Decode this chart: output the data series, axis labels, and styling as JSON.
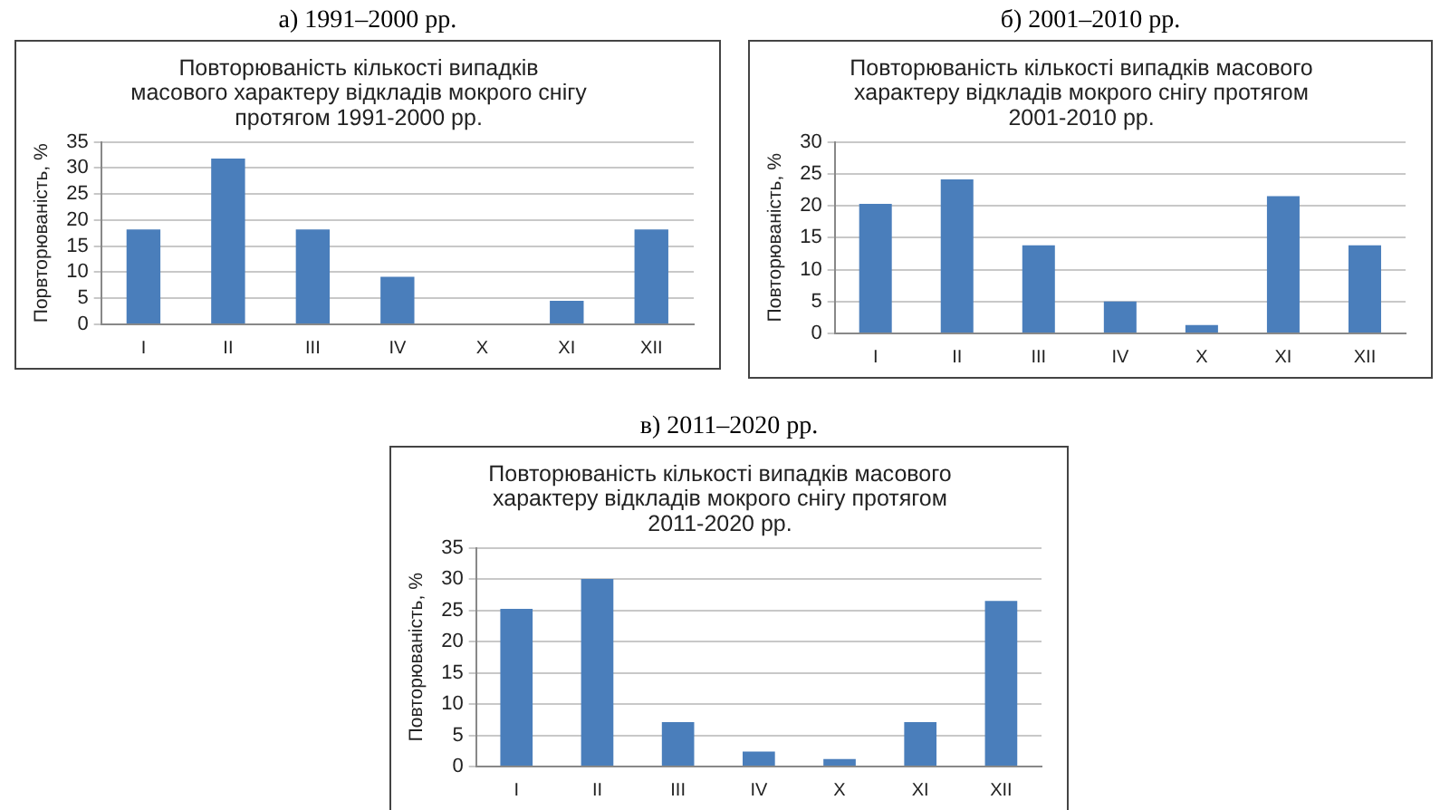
{
  "chart_data": [
    {
      "type": "bar",
      "annotations": [
        "а) 1991–2000 рр."
      ],
      "title": "Повторюваність кількості випадків\nмасового характеру відкладів мокрого снігу\nпротягом 1991-2000 рр.",
      "ylabel": "Порвторюваність, %",
      "categories": [
        "I",
        "II",
        "III",
        "IV",
        "X",
        "XI",
        "XII"
      ],
      "values": [
        18.2,
        31.8,
        18.2,
        9.1,
        0,
        4.5,
        18.2
      ],
      "color": "#4a7ebb",
      "ylim": [
        0,
        35
      ],
      "yticks": [
        0,
        5,
        10,
        15,
        20,
        25,
        30,
        35
      ],
      "grid": "y"
    },
    {
      "type": "bar",
      "annotations": [
        "б) 2001–2010 рр."
      ],
      "title": "Повторюваність кількості випадків масового\nхарактеру відкладів мокрого снігу протягом\n2001-2010 рр.",
      "ylabel": "Повторюваність, %",
      "categories": [
        "I",
        "II",
        "III",
        "IV",
        "X",
        "XI",
        "XII"
      ],
      "values": [
        20.3,
        24.1,
        13.8,
        5.0,
        1.3,
        21.5,
        13.8
      ],
      "color": "#4a7ebb",
      "ylim": [
        0,
        30
      ],
      "yticks": [
        0,
        5,
        10,
        15,
        20,
        25,
        30
      ],
      "grid": "y"
    },
    {
      "type": "bar",
      "annotations": [
        "в) 2011–2020 рр."
      ],
      "title": "Повторюваність кількості випадків масового\nхарактеру відкладів мокрого снігу протягом\n2011-2020 рр.",
      "ylabel": "Повторюваність, %",
      "categories": [
        "I",
        "II",
        "III",
        "IV",
        "X",
        "XI",
        "XII"
      ],
      "values": [
        25.2,
        30,
        7.1,
        2.4,
        1.2,
        7.1,
        26.5
      ],
      "color": "#4a7ebb",
      "ylim": [
        0,
        35
      ],
      "yticks": [
        0,
        5,
        10,
        15,
        20,
        25,
        30,
        35
      ],
      "grid": "y"
    }
  ]
}
